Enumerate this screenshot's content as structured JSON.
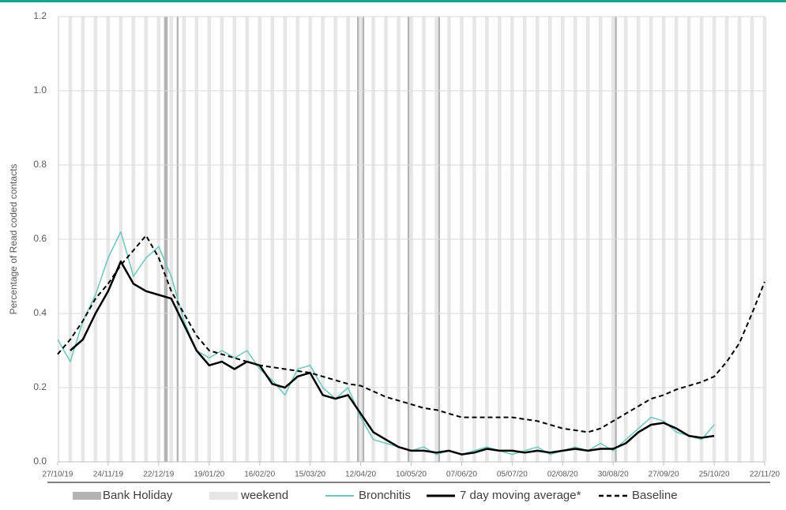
{
  "chart_data": {
    "type": "line",
    "y_label": "Percentage of Read coded contacts",
    "xlim": [
      "27/10/19",
      "22/11/20"
    ],
    "xticks": [
      "27/10/19",
      "24/11/19",
      "22/12/19",
      "19/01/20",
      "16/02/20",
      "15/03/20",
      "12/04/20",
      "10/05/20",
      "07/06/20",
      "05/07/20",
      "02/08/20",
      "30/08/20",
      "27/09/20",
      "25/10/20",
      "22/11/20"
    ],
    "ylim": [
      0,
      1.2
    ],
    "yticks": [
      {
        "value": 0,
        "label": "0.0"
      },
      {
        "value": 0.2,
        "label": "0.2"
      },
      {
        "value": 0.4,
        "label": "0.4"
      },
      {
        "value": 0.6,
        "label": "0.6"
      },
      {
        "value": 0.8,
        "label": "0.8"
      },
      {
        "value": 1.0,
        "label": "1.0"
      },
      {
        "value": 1.2,
        "label": "1.2"
      }
    ],
    "grid": true,
    "bank_holiday": {
      "name": "Bank Holiday",
      "color": "#b3b3b3",
      "dates": [
        "25/12/19",
        "26/12/19",
        "01/01/20",
        "10/04/20",
        "13/04/20",
        "08/05/20",
        "25/05/20",
        "31/08/20"
      ]
    },
    "weekend": {
      "name": "weekend",
      "color": "#e6e6e6"
    },
    "x": [
      "27/10/19",
      "03/11/19",
      "10/11/19",
      "17/11/19",
      "24/11/19",
      "01/12/19",
      "08/12/19",
      "15/12/19",
      "22/12/19",
      "29/12/19",
      "05/01/20",
      "12/01/20",
      "19/01/20",
      "26/01/20",
      "02/02/20",
      "09/02/20",
      "16/02/20",
      "23/02/20",
      "01/03/20",
      "08/03/20",
      "15/03/20",
      "22/03/20",
      "29/03/20",
      "05/04/20",
      "12/04/20",
      "19/04/20",
      "26/04/20",
      "03/05/20",
      "10/05/20",
      "17/05/20",
      "24/05/20",
      "31/05/20",
      "07/06/20",
      "14/06/20",
      "21/06/20",
      "28/06/20",
      "05/07/20",
      "12/07/20",
      "19/07/20",
      "26/07/20",
      "02/08/20",
      "09/08/20",
      "16/08/20",
      "23/08/20",
      "30/08/20",
      "06/09/20",
      "13/09/20",
      "20/09/20",
      "27/09/20",
      "04/10/20",
      "11/10/20",
      "18/10/20",
      "25/10/20",
      "01/11/20",
      "08/11/20",
      "15/11/20",
      "22/11/20"
    ],
    "series": [
      {
        "name": "Bronchitis",
        "color": "#6cc5bf",
        "dash": false,
        "width": 1.5,
        "values": [
          0.33,
          0.27,
          0.38,
          0.45,
          0.55,
          0.62,
          0.5,
          0.55,
          0.58,
          0.5,
          0.38,
          0.3,
          0.28,
          0.3,
          0.28,
          0.3,
          0.25,
          0.22,
          0.18,
          0.25,
          0.26,
          0.2,
          0.17,
          0.2,
          0.12,
          0.06,
          0.05,
          0.04,
          0.03,
          0.04,
          0.02,
          0.03,
          0.02,
          0.03,
          0.04,
          0.03,
          0.02,
          0.03,
          0.04,
          0.02,
          0.03,
          0.04,
          0.03,
          0.05,
          0.03,
          0.06,
          0.09,
          0.12,
          0.11,
          0.08,
          0.07,
          0.06,
          0.1,
          null,
          null,
          null,
          null
        ]
      },
      {
        "name": "7 day moving average*",
        "color": "#000000",
        "dash": false,
        "width": 2.5,
        "values": [
          null,
          0.3,
          0.33,
          0.4,
          0.46,
          0.54,
          0.48,
          0.46,
          0.45,
          0.44,
          0.37,
          0.3,
          0.26,
          0.27,
          0.25,
          0.27,
          0.26,
          0.21,
          0.2,
          0.23,
          0.24,
          0.18,
          0.17,
          0.18,
          0.13,
          0.08,
          0.06,
          0.04,
          0.03,
          0.03,
          0.025,
          0.03,
          0.02,
          0.025,
          0.035,
          0.03,
          0.03,
          0.025,
          0.03,
          0.025,
          0.03,
          0.035,
          0.03,
          0.035,
          0.035,
          0.05,
          0.08,
          0.1,
          0.105,
          0.09,
          0.07,
          0.065,
          0.07,
          null,
          null,
          null,
          null
        ]
      },
      {
        "name": "Baseline",
        "color": "#000000",
        "dash": true,
        "width": 2,
        "values": [
          0.29,
          0.33,
          0.38,
          0.44,
          0.48,
          0.53,
          0.57,
          0.61,
          0.55,
          0.46,
          0.4,
          0.34,
          0.3,
          0.29,
          0.28,
          0.27,
          0.26,
          0.255,
          0.25,
          0.245,
          0.24,
          0.23,
          0.22,
          0.21,
          0.205,
          0.19,
          0.175,
          0.165,
          0.155,
          0.145,
          0.14,
          0.13,
          0.12,
          0.12,
          0.12,
          0.12,
          0.12,
          0.115,
          0.11,
          0.1,
          0.09,
          0.085,
          0.08,
          0.09,
          0.11,
          0.13,
          0.15,
          0.17,
          0.18,
          0.195,
          0.205,
          0.215,
          0.23,
          0.27,
          0.32,
          0.4,
          0.485
        ]
      }
    ]
  }
}
